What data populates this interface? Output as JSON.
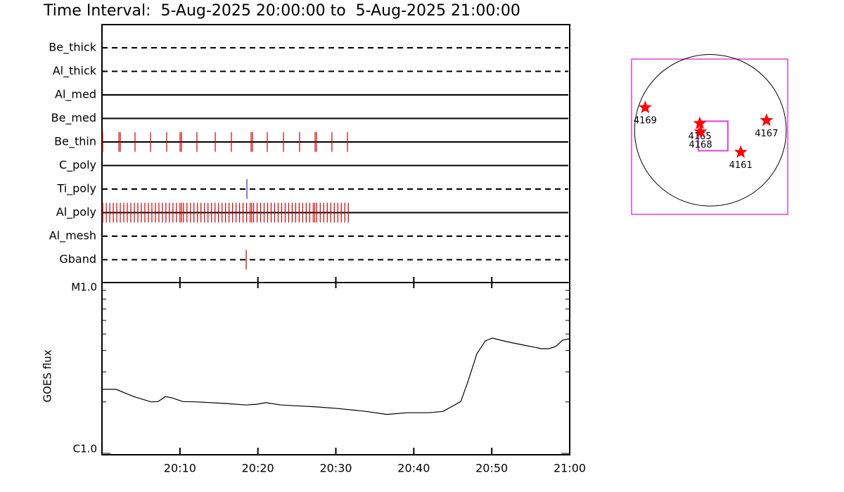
{
  "chart_data": [
    {
      "type": "event",
      "title": "Time Interval:  5-Aug-2025 20:00:00 to  5-Aug-2025 21:00:00",
      "xlim": [
        0,
        60
      ],
      "xticks": [
        {
          "value": 10,
          "label": "20:10"
        },
        {
          "value": 20,
          "label": "20:20"
        },
        {
          "value": 30,
          "label": "20:30"
        },
        {
          "value": 40,
          "label": "20:40"
        },
        {
          "value": 50,
          "label": "20:50"
        },
        {
          "value": 60,
          "label": "21:00"
        }
      ],
      "rows": [
        {
          "name": "Be_thick",
          "style": "dashed",
          "color": "#cc0000",
          "times": []
        },
        {
          "name": "Al_thick",
          "style": "dashed",
          "color": "#cc0000",
          "times": []
        },
        {
          "name": "Al_med",
          "style": "solid",
          "color": "#cc0000",
          "times": []
        },
        {
          "name": "Be_med",
          "style": "solid",
          "color": "#cc0000",
          "times": []
        },
        {
          "name": "Be_thin",
          "style": "solid",
          "color": "#cc0000",
          "times": [
            0.09,
            2.17,
            2.35,
            4.24,
            6.23,
            8.3,
            10.02,
            10.2,
            12.18,
            14.53,
            16.6,
            19.13,
            19.31,
            21.2,
            23.28,
            25.35,
            27.34,
            27.52,
            29.5,
            31.49
          ]
        },
        {
          "name": "C_poly",
          "style": "solid",
          "color": "#cc0000",
          "times": []
        },
        {
          "name": "Ti_poly",
          "style": "dashed",
          "color": "#3030a0",
          "times": [
            18.59
          ]
        },
        {
          "name": "Al_poly",
          "style": "solid",
          "color": "#cc0000",
          "times": [
            0.1,
            0.55,
            1.0,
            1.45,
            1.9,
            2.35,
            2.8,
            3.25,
            3.7,
            4.15,
            4.6,
            5.05,
            5.5,
            5.95,
            6.4,
            6.85,
            7.3,
            7.75,
            8.2,
            8.65,
            9.1,
            9.55,
            10.0,
            10.2,
            10.45,
            10.9,
            11.35,
            11.8,
            12.25,
            12.7,
            13.15,
            13.6,
            14.05,
            14.5,
            14.95,
            15.4,
            15.85,
            16.3,
            16.75,
            17.2,
            17.65,
            18.1,
            18.55,
            19.0,
            19.2,
            19.45,
            19.9,
            20.35,
            20.8,
            21.25,
            21.7,
            22.15,
            22.6,
            23.05,
            23.5,
            23.95,
            24.4,
            24.85,
            25.3,
            25.75,
            26.2,
            26.65,
            27.1,
            27.3,
            27.55,
            28.0,
            28.45,
            28.9,
            29.35,
            29.8,
            30.25,
            30.7,
            31.15,
            31.6
          ]
        },
        {
          "name": "Al_mesh",
          "style": "dashed",
          "color": "#cc0000",
          "times": []
        },
        {
          "name": "Gband",
          "style": "dashed",
          "color": "#cc0000",
          "times": [
            18.5
          ]
        }
      ]
    },
    {
      "type": "line",
      "ylabel": "GOES flux",
      "log_y": true,
      "color": "#000000",
      "xlim": [
        0,
        60
      ],
      "xticks": [
        {
          "value": 10,
          "label": "20:10"
        },
        {
          "value": 20,
          "label": "20:20"
        },
        {
          "value": 30,
          "label": "20:30"
        },
        {
          "value": 40,
          "label": "20:40"
        },
        {
          "value": 50,
          "label": "20:50"
        },
        {
          "value": 60,
          "label": "21:00"
        }
      ],
      "ylim": [
        1e-06,
        1e-05
      ],
      "yticks": [
        {
          "value": 1e-06,
          "label": "C1.0"
        },
        {
          "value": 1e-05,
          "label": "M1.0"
        }
      ],
      "yminorticks": [
        2e-06,
        3e-06,
        4e-06,
        5e-06,
        6e-06,
        7e-06,
        8e-06,
        9e-06
      ],
      "x": [
        0,
        1.8,
        4.06,
        6.32,
        7.22,
        8.12,
        9.02,
        10.38,
        12.18,
        15.79,
        18.5,
        19.85,
        21.02,
        23.01,
        24.81,
        27.52,
        30.23,
        33.84,
        36.54,
        39.25,
        41.96,
        43.76,
        46.02,
        46.92,
        48.09,
        49.17,
        50.08,
        51.88,
        54.14,
        56.39,
        57.3,
        58.2,
        59.1,
        60
      ],
      "values": [
        2.37e-06,
        2.37e-06,
        2.15e-06,
        2e-06,
        2.01e-06,
        2.15e-06,
        2.11e-06,
        2.01e-06,
        2e-06,
        1.96e-06,
        1.92e-06,
        1.94e-06,
        1.98e-06,
        1.92e-06,
        1.9e-06,
        1.87e-06,
        1.83e-06,
        1.76e-06,
        1.69e-06,
        1.73e-06,
        1.73e-06,
        1.76e-06,
        2.01e-06,
        2.61e-06,
        3.83e-06,
        4.55e-06,
        4.73e-06,
        4.51e-06,
        4.3e-06,
        4.1e-06,
        4.1e-06,
        4.22e-06,
        4.6e-06,
        4.69e-06
      ]
    },
    {
      "type": "scatter",
      "frame_color": "#e040e0",
      "color": "#ff0000",
      "xlim": [
        -1.04,
        1.02
      ],
      "ylim": [
        -1.11,
        0.94
      ],
      "disk_radius": 1,
      "labels": [
        "4169",
        "4165",
        "4168",
        "4167",
        "4161"
      ],
      "x": [
        -0.86,
        -0.14,
        -0.13,
        0.74,
        0.4
      ],
      "y": [
        0.3,
        0.09,
        -0.02,
        0.13,
        -0.29
      ],
      "fov": {
        "x": [
          -0.16,
          0.23
        ],
        "y": [
          0.12,
          -0.27
        ]
      }
    }
  ]
}
